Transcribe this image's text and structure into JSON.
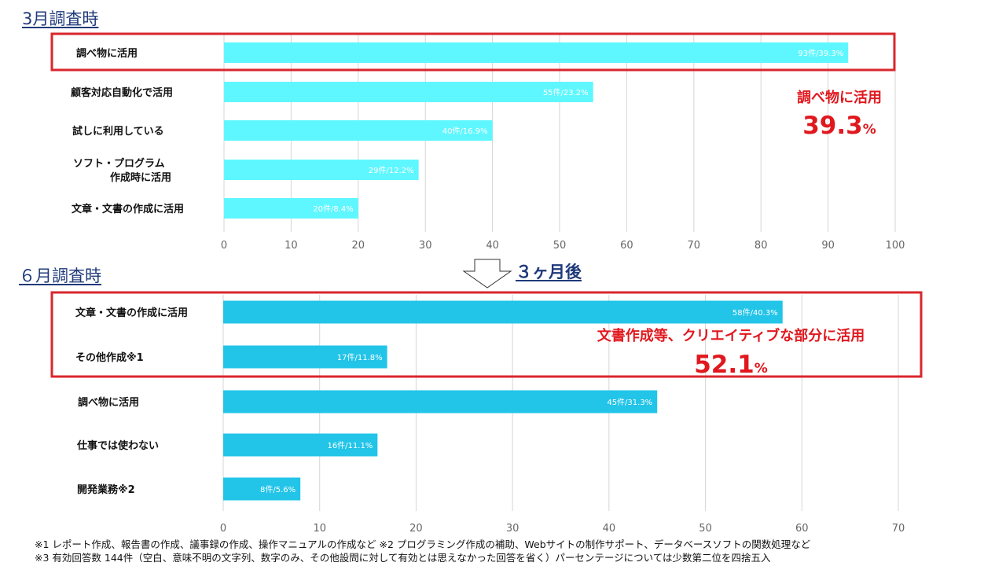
{
  "titles": {
    "march": "3月調査時",
    "june": "６月調査時",
    "arrow_label": "３ヶ月後"
  },
  "callouts": {
    "march": {
      "title": "調べ物に活用",
      "value": "39.3",
      "unit": "%"
    },
    "june": {
      "title": "文書作成等、クリエイティブな部分に活用",
      "value": "52.1",
      "unit": "%"
    }
  },
  "footnotes": {
    "line1": "※1 レポート作成、報告書の作成、議事録の作成、操作マニュアルの作成など ※2 プログラミング作成の補助、Webサイトの制作サポート、データベースソフトの関数処理など",
    "line2": "※3 有効回答数 144件（空白、意味不明の文字列、数字のみ、その他設問に対して有効とは思えなかった回答を省く）パーセンテージについては少数第二位を四捨五入"
  },
  "colors": {
    "march_bar": "#5ff7ff",
    "june_bar": "#22c4e8",
    "highlight": "#d9262c",
    "callout": "#e0181e",
    "title": "#1f3a7a"
  },
  "chart_data": [
    {
      "type": "bar",
      "orientation": "horizontal",
      "title": "3月調査時",
      "categories": [
        [
          "調べ物に活用"
        ],
        [
          "顧客対応自動化で活用"
        ],
        [
          "試しに利用している"
        ],
        [
          "ソフト・プログラム",
          "作成時に活用"
        ],
        [
          "文章・文書の作成に活用"
        ]
      ],
      "values": [
        93,
        55,
        40,
        29,
        20
      ],
      "data_labels": [
        "93件/39.3%",
        "55件/23.2%",
        "40件/16.9%",
        "29件/12.2%",
        "20件/8.4%"
      ],
      "xlim": [
        0,
        100
      ],
      "xticks": [
        0,
        10,
        20,
        30,
        40,
        50,
        60,
        70,
        80,
        90,
        100
      ],
      "highlighted_categories": [
        0
      ],
      "grid": true
    },
    {
      "type": "bar",
      "orientation": "horizontal",
      "title": "６月調査時",
      "categories": [
        [
          "文章・文書の作成に活用"
        ],
        [
          "その他作成※1"
        ],
        [
          "調べ物に活用"
        ],
        [
          "仕事では使わない"
        ],
        [
          "開発業務※2"
        ]
      ],
      "values": [
        58,
        17,
        45,
        16,
        8
      ],
      "data_labels": [
        "58件/40.3%",
        "17件/11.8%",
        "45件/31.3%",
        "16件/11.1%",
        "8件/5.6%"
      ],
      "xlim": [
        0,
        70
      ],
      "xticks": [
        0,
        10,
        20,
        30,
        40,
        50,
        60,
        70
      ],
      "highlighted_categories": [
        0,
        1
      ],
      "grid": true
    }
  ]
}
